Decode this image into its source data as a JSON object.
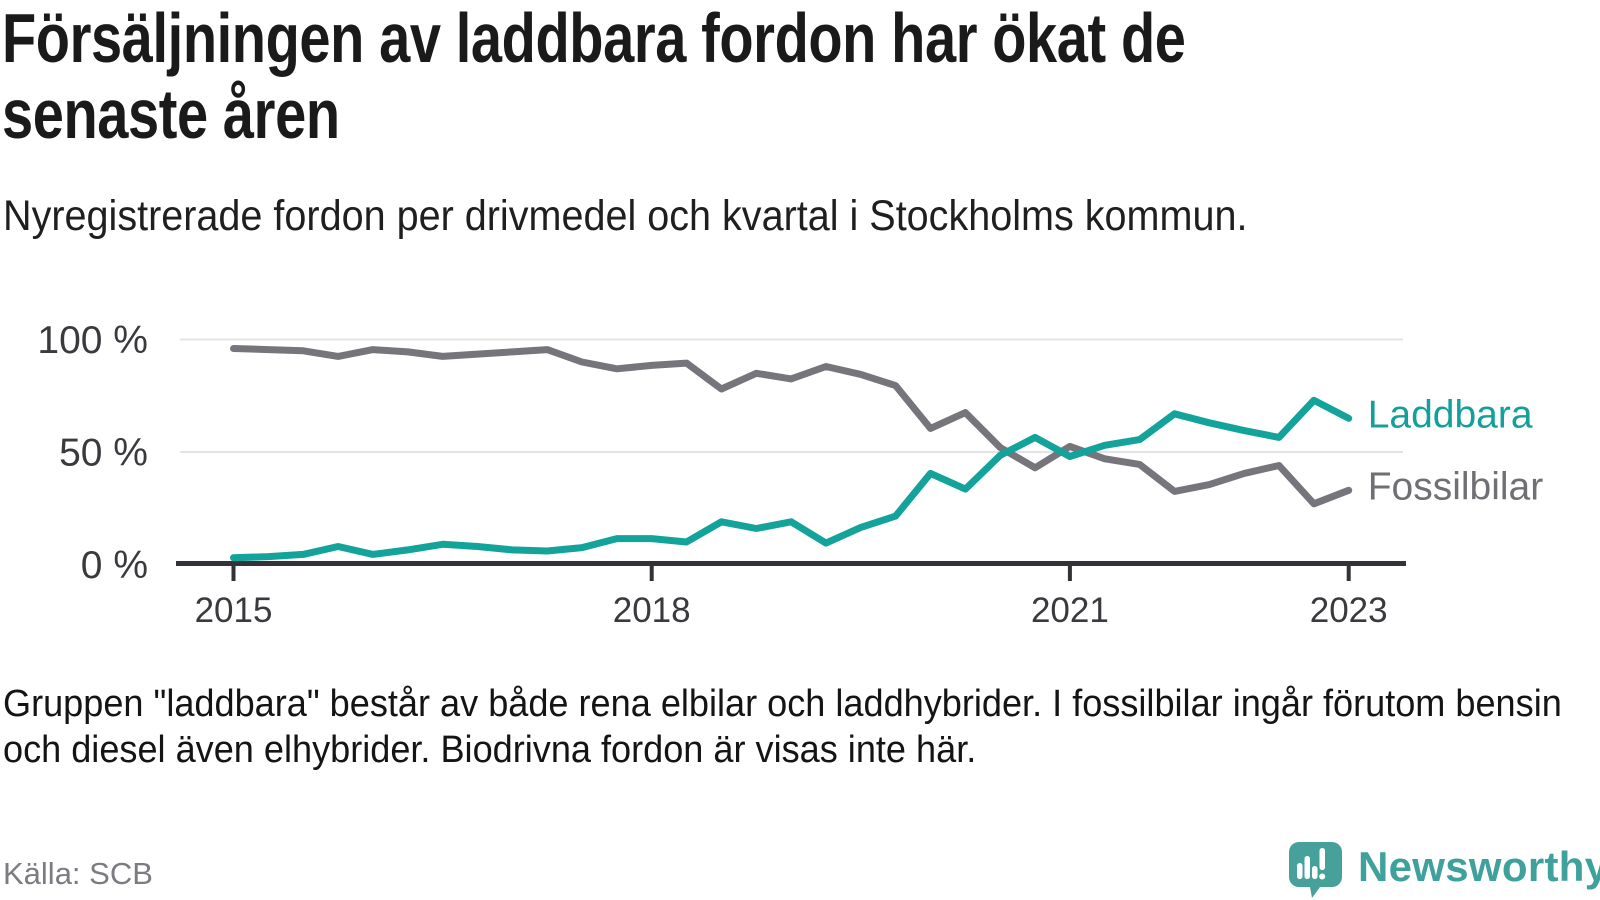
{
  "header": {
    "title_line1": "Försäljningen av laddbara fordon har ökat de",
    "title_line2": "senaste åren",
    "subtitle": "Nyregistrerade fordon per drivmedel och kvartal i Stockholms kommun."
  },
  "chart_data": {
    "type": "line",
    "title": "Försäljningen av laddbara fordon har ökat de senaste åren",
    "subtitle": "Nyregistrerade fordon per drivmedel och kvartal i Stockholms kommun.",
    "x_unit": "quarter",
    "ylim": [
      0,
      100
    ],
    "grid": "horizontal-only",
    "legend_position": "right-of-line-ends",
    "y_ticks": [
      "100 %",
      "50 %",
      "0 %"
    ],
    "y_tick_values": [
      100,
      50,
      0
    ],
    "x_ticks": [
      "2015",
      "2018",
      "2021",
      "2023"
    ],
    "x_tick_positions": [
      0,
      12,
      24,
      32
    ],
    "x_quarters": [
      "2015Q1",
      "2015Q2",
      "2015Q3",
      "2015Q4",
      "2016Q1",
      "2016Q2",
      "2016Q3",
      "2016Q4",
      "2017Q1",
      "2017Q2",
      "2017Q3",
      "2017Q4",
      "2018Q1",
      "2018Q2",
      "2018Q3",
      "2018Q4",
      "2019Q1",
      "2019Q2",
      "2019Q3",
      "2019Q4",
      "2020Q1",
      "2020Q2",
      "2020Q3",
      "2020Q4",
      "2021Q1",
      "2021Q2",
      "2021Q3",
      "2021Q4",
      "2022Q1",
      "2022Q2",
      "2022Q3",
      "2022Q4",
      "2023Q1"
    ],
    "series": [
      {
        "name": "Fossilbilar",
        "color": "#76757c",
        "label_color": "#6f6f74",
        "values": [
          96,
          95.5,
          95,
          92.5,
          95.5,
          94.5,
          92.5,
          93.5,
          94.5,
          95.5,
          90,
          87,
          88.5,
          89.5,
          78,
          85,
          82.5,
          88,
          84.5,
          79.5,
          60.5,
          67.5,
          52,
          43,
          52.5,
          47,
          44.5,
          32.5,
          35.5,
          40.5,
          44,
          27,
          33
        ]
      },
      {
        "name": "Laddbara",
        "color": "#14a39b",
        "label_color": "#14a09a",
        "values": [
          3,
          3.5,
          4.5,
          8,
          4.5,
          6.5,
          9,
          8,
          6.5,
          6,
          7.5,
          11.5,
          11.5,
          10,
          19,
          16,
          19,
          9.5,
          16.5,
          21.5,
          40.5,
          33.5,
          48.5,
          56.5,
          48,
          53,
          55.5,
          67,
          63,
          59.5,
          56.5,
          73,
          65
        ]
      }
    ],
    "colors": {
      "axis": "#323237",
      "tick_label": "#3a3a3e",
      "gridline": "#e4e4e6",
      "background": "#ffffff"
    }
  },
  "footer": {
    "note_line1": "Gruppen \"laddbara\" består av både rena elbilar och laddhybrider. I fossilbilar ingår förutom bensin",
    "note_line2": "och diesel även elhybrider. Biodrivna fordon är visas inte här.",
    "source": "Källa: SCB"
  },
  "branding": {
    "logo_text": "Newsworthy",
    "logo_color": "#46a19a",
    "logo_icon": "speech-bubble-bar-chart-exclamation"
  }
}
